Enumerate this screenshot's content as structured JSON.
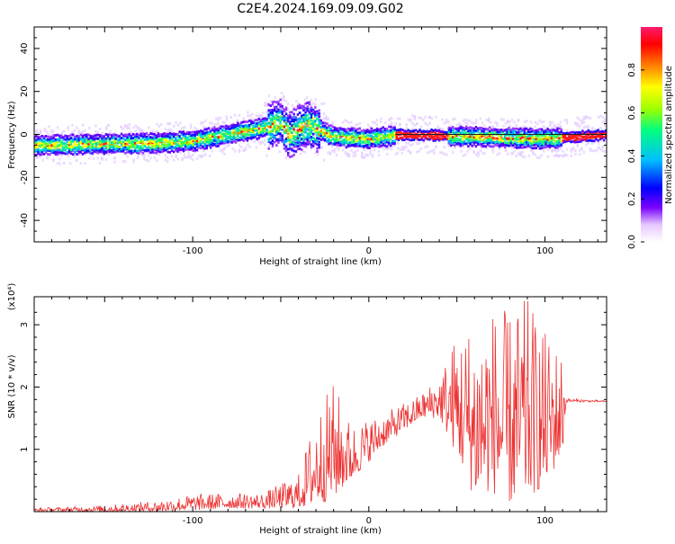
{
  "title": "C2E4.2024.169.09.09.G02",
  "chart_data": [
    {
      "type": "heatmap",
      "xlabel": "Height of straight line (km)",
      "ylabel": "Frequency (Hz)",
      "xlim": [
        -190,
        135
      ],
      "ylim": [
        -50,
        50
      ],
      "xticks": [
        -100,
        0,
        100
      ],
      "yticks": [
        -40,
        -20,
        0,
        20,
        40
      ],
      "colorbar": {
        "label": "Normalized spectral amplitude",
        "range": [
          0,
          1
        ],
        "ticks": [
          0.0,
          0.2,
          0.4,
          0.6,
          0.8
        ],
        "colors": [
          "#ffffff",
          "#e6c8ff",
          "#7a00ff",
          "#0000ff",
          "#00bfff",
          "#00ff7f",
          "#a0ff00",
          "#ffff00",
          "#ff8000",
          "#ff0000",
          "#ff1a6e"
        ]
      },
      "ridge_centerline": [
        {
          "x": -190,
          "y": -5
        },
        {
          "x": -120,
          "y": -4
        },
        {
          "x": -100,
          "y": -3
        },
        {
          "x": -80,
          "y": 0
        },
        {
          "x": -60,
          "y": 3
        },
        {
          "x": -50,
          "y": 6
        },
        {
          "x": -45,
          "y": 0
        },
        {
          "x": -35,
          "y": 5
        },
        {
          "x": -20,
          "y": -1
        },
        {
          "x": 0,
          "y": -2
        },
        {
          "x": 20,
          "y": 0
        },
        {
          "x": 60,
          "y": -1
        },
        {
          "x": 100,
          "y": -2
        },
        {
          "x": 135,
          "y": 0
        }
      ]
    },
    {
      "type": "line",
      "xlabel": "Height of straight line (km)",
      "ylabel": "SNR (10 * v/v)",
      "yscale_label": "(x10⁴)",
      "xlim": [
        -190,
        135
      ],
      "ylim": [
        0,
        3.45
      ],
      "xticks": [
        -100,
        0,
        100
      ],
      "yticks": [
        1,
        2,
        3
      ],
      "color": "#ee3333",
      "envelope": [
        {
          "x": -190,
          "lo": 0.0,
          "hi": 0.06
        },
        {
          "x": -150,
          "lo": 0.0,
          "hi": 0.1
        },
        {
          "x": -120,
          "lo": 0.0,
          "hi": 0.18
        },
        {
          "x": -100,
          "lo": 0.02,
          "hi": 0.28
        },
        {
          "x": -80,
          "lo": 0.05,
          "hi": 0.3
        },
        {
          "x": -60,
          "lo": 0.05,
          "hi": 0.3
        },
        {
          "x": -40,
          "lo": 0.05,
          "hi": 0.6
        },
        {
          "x": -30,
          "lo": 0.1,
          "hi": 1.6
        },
        {
          "x": -20,
          "lo": 0.2,
          "hi": 2.1
        },
        {
          "x": -10,
          "lo": 0.5,
          "hi": 1.4
        },
        {
          "x": 0,
          "lo": 0.8,
          "hi": 1.5
        },
        {
          "x": 10,
          "lo": 1.1,
          "hi": 1.6
        },
        {
          "x": 20,
          "lo": 1.3,
          "hi": 1.75
        },
        {
          "x": 30,
          "lo": 1.5,
          "hi": 1.9
        },
        {
          "x": 40,
          "lo": 1.5,
          "hi": 2.2
        },
        {
          "x": 50,
          "lo": 0.9,
          "hi": 2.9
        },
        {
          "x": 60,
          "lo": 0.2,
          "hi": 3.1
        },
        {
          "x": 70,
          "lo": 0.3,
          "hi": 3.3
        },
        {
          "x": 80,
          "lo": 0.1,
          "hi": 3.2
        },
        {
          "x": 90,
          "lo": 0.2,
          "hi": 3.45
        },
        {
          "x": 100,
          "lo": 0.4,
          "hi": 2.9
        },
        {
          "x": 110,
          "lo": 0.9,
          "hi": 2.6
        },
        {
          "x": 112,
          "lo": 1.76,
          "hi": 1.82
        },
        {
          "x": 135,
          "lo": 1.76,
          "hi": 1.78
        }
      ]
    }
  ]
}
